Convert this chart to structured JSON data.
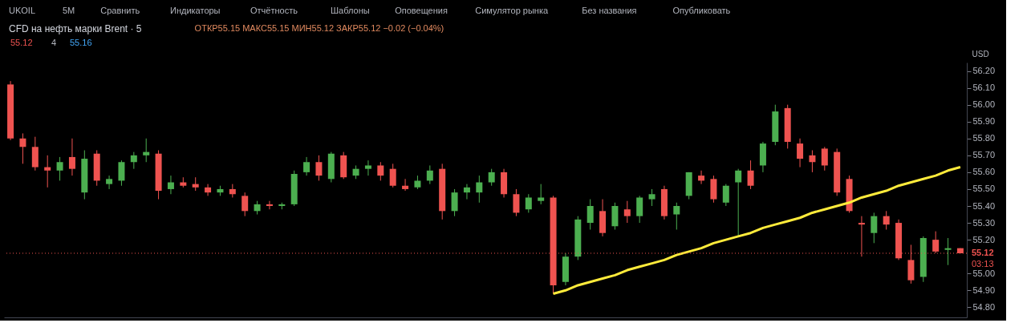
{
  "chart_data": {
    "type": "candlestick",
    "title": "CFD на нефть марки Brent · 5",
    "subtitle": "ОТКР55.15 МАКС55.15 МИН55.12 ЗАКР55.12 −0.02 (−0.04%)",
    "ylabel": "USD",
    "annotations": [
      "UKOIL",
      "5M",
      "Сравнить",
      "Индикаторы",
      "Отчётность",
      "Шаблоны",
      "Оповещения",
      "Симулятор рынка",
      "Без названия",
      "Опубликовать",
      "55.12",
      "4",
      "55.16",
      "03:13"
    ],
    "categories": [
      null,
      null,
      null,
      null,
      null,
      null,
      null,
      null,
      null,
      null,
      null,
      null,
      null,
      null,
      null,
      null,
      null,
      null,
      null,
      null,
      null,
      null,
      null,
      null,
      null,
      null,
      null,
      null,
      null,
      null,
      null,
      null,
      null,
      null,
      null,
      null,
      null,
      null,
      null,
      null,
      null,
      null,
      null,
      null,
      null,
      null,
      null,
      null,
      null,
      null,
      null,
      null,
      null,
      null,
      null,
      null,
      null,
      null,
      null,
      null,
      null,
      null,
      null,
      null,
      null,
      null,
      null,
      null,
      null,
      null,
      null,
      null,
      null,
      null,
      null,
      null,
      null,
      null
    ],
    "tick_labels": "y",
    "grid": false,
    "ylim": [
      54.74,
      56.25
    ],
    "yticks": [
      {
        "value": 54.8,
        "label": "54.80"
      },
      {
        "value": 54.9,
        "label": "54.90"
      },
      {
        "value": 55.0,
        "label": "55.00"
      },
      {
        "value": 55.2,
        "label": "55.20"
      },
      {
        "value": 55.3,
        "label": "55.30"
      },
      {
        "value": 55.4,
        "label": "55.40"
      },
      {
        "value": 55.5,
        "label": "55.50"
      },
      {
        "value": 55.6,
        "label": "55.60"
      },
      {
        "value": 55.7,
        "label": "55.70"
      },
      {
        "value": 55.8,
        "label": "55.80"
      },
      {
        "value": 55.9,
        "label": "55.90"
      },
      {
        "value": 56.0,
        "label": "56.00"
      },
      {
        "value": 56.1,
        "label": "56.10"
      },
      {
        "value": 56.2,
        "label": "56.20"
      }
    ],
    "ref_lines": [
      {
        "axis": "y",
        "value": 55.12,
        "label": "55.12",
        "color": "#ef5350",
        "line_style": "dotted"
      }
    ],
    "series": [
      {
        "type": "candlestick",
        "colors": [
          "#ef5350",
          "#ef5350",
          "#ef5350",
          "#ef5350",
          "#4caf50",
          "#ef5350",
          "#4caf50",
          "#ef5350",
          "#4caf50",
          "#4caf50",
          "#4caf50",
          "#4caf50",
          "#ef5350",
          "#4caf50",
          "#ef5350",
          "#ef5350",
          "#ef5350",
          "#4caf50",
          "#ef5350",
          "#ef5350",
          "#4caf50",
          "#ef5350",
          "#4caf50",
          "#4caf50",
          "#4caf50",
          "#ef5350",
          "#4caf50",
          "#ef5350",
          "#4caf50",
          "#4caf50",
          "#ef5350",
          "#ef5350",
          "#ef5350",
          "#4caf50",
          "#4caf50",
          "#ef5350",
          "#4caf50",
          "#4caf50",
          "#4caf50",
          "#4caf50",
          "#ef5350",
          "#ef5350",
          "#4caf50",
          "#4caf50",
          "#ef5350",
          "#4caf50",
          "#4caf50",
          "#4caf50",
          "#ef5350",
          "#4caf50",
          "#ef5350",
          "#4caf50",
          "#4caf50",
          "#ef5350",
          "#4caf50",
          "#4caf50",
          "#ef5350",
          "#ef5350",
          "#4caf50",
          "#4caf50",
          "#ef5350",
          "#4caf50",
          "#4caf50",
          "#ef5350",
          "#ef5350",
          "#ef5350",
          "#ef5350",
          "#ef5350",
          "#ef5350",
          "#ef5350",
          "#4caf50",
          "#ef5350",
          "#ef5350",
          "#ef5350",
          "#4caf50",
          "#ef5350",
          "#4caf50",
          "#ef5350"
        ],
        "ohlc": [
          [
            56.12,
            56.14,
            55.79,
            55.8
          ],
          [
            55.8,
            55.83,
            55.65,
            55.75
          ],
          [
            55.75,
            55.81,
            55.61,
            55.63
          ],
          [
            55.63,
            55.7,
            55.51,
            55.61
          ],
          [
            55.61,
            55.69,
            55.55,
            55.66
          ],
          [
            55.69,
            55.8,
            55.58,
            55.62
          ],
          [
            55.48,
            55.73,
            55.44,
            55.68
          ],
          [
            55.71,
            55.73,
            55.52,
            55.55
          ],
          [
            55.53,
            55.58,
            55.5,
            55.56
          ],
          [
            55.55,
            55.67,
            55.52,
            55.66
          ],
          [
            55.66,
            55.72,
            55.62,
            55.7
          ],
          [
            55.7,
            55.8,
            55.66,
            55.72
          ],
          [
            55.71,
            55.73,
            55.44,
            55.49
          ],
          [
            55.5,
            55.58,
            55.47,
            55.54
          ],
          [
            55.54,
            55.57,
            55.51,
            55.52
          ],
          [
            55.53,
            55.57,
            55.49,
            55.51
          ],
          [
            55.51,
            55.53,
            55.46,
            55.48
          ],
          [
            55.48,
            55.52,
            55.46,
            55.5
          ],
          [
            55.5,
            55.53,
            55.45,
            55.47
          ],
          [
            55.46,
            55.48,
            55.34,
            55.37
          ],
          [
            55.37,
            55.43,
            55.35,
            55.41
          ],
          [
            55.41,
            55.43,
            55.38,
            55.4
          ],
          [
            55.4,
            55.42,
            55.38,
            55.41
          ],
          [
            55.41,
            55.61,
            55.4,
            55.59
          ],
          [
            55.6,
            55.69,
            55.58,
            55.66
          ],
          [
            55.66,
            55.7,
            55.55,
            55.58
          ],
          [
            55.56,
            55.72,
            55.54,
            55.71
          ],
          [
            55.7,
            55.72,
            55.56,
            55.57
          ],
          [
            55.58,
            55.64,
            55.56,
            55.62
          ],
          [
            55.62,
            55.67,
            55.58,
            55.64
          ],
          [
            55.64,
            55.66,
            55.55,
            55.58
          ],
          [
            55.62,
            55.65,
            55.51,
            55.52
          ],
          [
            55.52,
            55.56,
            55.49,
            55.5
          ],
          [
            55.51,
            55.58,
            55.5,
            55.55
          ],
          [
            55.55,
            55.64,
            55.53,
            55.61
          ],
          [
            55.62,
            55.65,
            55.32,
            55.37
          ],
          [
            55.37,
            55.5,
            55.34,
            55.48
          ],
          [
            55.48,
            55.53,
            55.44,
            55.51
          ],
          [
            55.48,
            55.58,
            55.42,
            55.54
          ],
          [
            55.54,
            55.62,
            55.52,
            55.6
          ],
          [
            55.6,
            55.62,
            55.45,
            55.47
          ],
          [
            55.47,
            55.5,
            55.34,
            55.36
          ],
          [
            55.38,
            55.47,
            55.36,
            55.45
          ],
          [
            55.43,
            55.53,
            55.41,
            55.45
          ],
          [
            55.45,
            55.46,
            54.88,
            54.93
          ],
          [
            54.95,
            55.12,
            54.93,
            55.1
          ],
          [
            55.1,
            55.34,
            55.08,
            55.32
          ],
          [
            55.3,
            55.44,
            55.26,
            55.4
          ],
          [
            55.37,
            55.44,
            55.22,
            55.24
          ],
          [
            55.28,
            55.42,
            55.26,
            55.4
          ],
          [
            55.38,
            55.43,
            55.3,
            55.34
          ],
          [
            55.34,
            55.46,
            55.3,
            55.45
          ],
          [
            55.44,
            55.5,
            55.4,
            55.47
          ],
          [
            55.5,
            55.52,
            55.32,
            55.34
          ],
          [
            55.35,
            55.42,
            55.26,
            55.4
          ],
          [
            55.46,
            55.6,
            55.44,
            55.6
          ],
          [
            55.58,
            55.61,
            55.53,
            55.55
          ],
          [
            55.56,
            55.58,
            55.42,
            55.44
          ],
          [
            55.42,
            55.53,
            55.4,
            55.52
          ],
          [
            55.54,
            55.62,
            55.22,
            55.61
          ],
          [
            55.61,
            55.67,
            55.5,
            55.52
          ],
          [
            55.64,
            55.78,
            55.6,
            55.77
          ],
          [
            55.78,
            56.0,
            55.76,
            55.96
          ],
          [
            55.98,
            56.0,
            55.74,
            55.78
          ],
          [
            55.77,
            55.8,
            55.63,
            55.68
          ],
          [
            55.7,
            55.73,
            55.6,
            55.66
          ],
          [
            55.74,
            55.75,
            55.61,
            55.64
          ],
          [
            55.72,
            55.74,
            55.46,
            55.48
          ],
          [
            55.56,
            55.58,
            55.36,
            55.37
          ],
          [
            55.3,
            55.34,
            55.1,
            55.29
          ],
          [
            55.24,
            55.36,
            55.18,
            55.34
          ],
          [
            55.34,
            55.37,
            55.26,
            55.29
          ],
          [
            55.3,
            55.32,
            55.08,
            55.09
          ],
          [
            55.08,
            55.17,
            54.94,
            54.96
          ],
          [
            54.98,
            55.22,
            54.95,
            55.21
          ],
          [
            55.2,
            55.25,
            55.12,
            55.13
          ],
          [
            55.14,
            55.21,
            55.05,
            55.15
          ],
          [
            55.15,
            55.15,
            55.12,
            55.12
          ]
        ]
      },
      {
        "type": "line",
        "color": "#ffeb3b",
        "values": [
          null,
          null,
          null,
          null,
          null,
          null,
          null,
          null,
          null,
          null,
          null,
          null,
          null,
          null,
          null,
          null,
          null,
          null,
          null,
          null,
          null,
          null,
          null,
          null,
          null,
          null,
          null,
          null,
          null,
          null,
          null,
          null,
          null,
          null,
          null,
          null,
          null,
          null,
          null,
          null,
          null,
          null,
          null,
          null,
          54.88,
          54.9,
          54.93,
          54.95,
          54.97,
          54.99,
          55.02,
          55.04,
          55.06,
          55.08,
          55.11,
          55.13,
          55.15,
          55.18,
          55.2,
          55.22,
          55.24,
          55.27,
          55.29,
          55.31,
          55.33,
          55.36,
          55.38,
          55.4,
          55.42,
          55.45,
          55.47,
          55.49,
          55.52,
          55.54,
          55.56,
          55.58,
          55.61,
          55.63
        ]
      }
    ]
  }
}
